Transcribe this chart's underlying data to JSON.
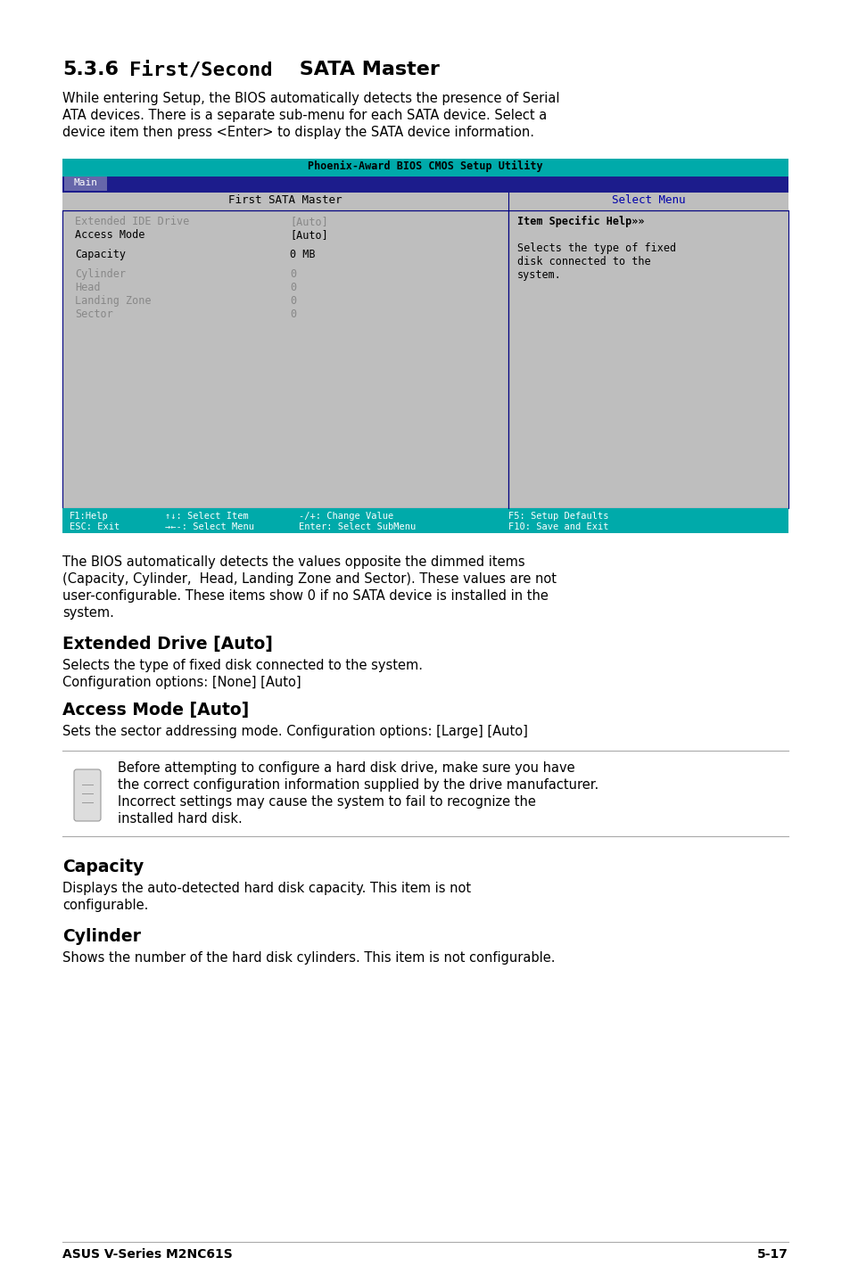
{
  "bios_title": "Phoenix-Award BIOS CMOS Setup Utility",
  "bios_tab": "Main",
  "bios_header_left": "First SATA Master",
  "bios_header_right": "Select Menu",
  "bios_rows": [
    {
      "label": "Extended IDE Drive",
      "value": "[Auto]",
      "dimmed": true
    },
    {
      "label": "Access Mode",
      "value": "[Auto]",
      "dimmed": false
    },
    {
      "label": "",
      "value": "",
      "dimmed": false
    },
    {
      "label": "Capacity",
      "value": "0 MB",
      "dimmed": false
    },
    {
      "label": "",
      "value": "",
      "dimmed": false
    },
    {
      "label": "Cylinder",
      "value": "0",
      "dimmed": true
    },
    {
      "label": "Head",
      "value": "0",
      "dimmed": true
    },
    {
      "label": "Landing Zone",
      "value": "0",
      "dimmed": true
    },
    {
      "label": "Sector",
      "value": "0",
      "dimmed": true
    }
  ],
  "help_lines": [
    "Item Specific Help»»",
    "",
    "Selects the type of fixed",
    "disk connected to the",
    "system."
  ],
  "footer_left1": "F1:Help",
  "footer_left2": "ESC: Exit",
  "footer_mid1": "↑↓: Select Item",
  "footer_mid2": "→←-: Select Menu",
  "footer_val1": "-/+: Change Value",
  "footer_val2": "Enter: Select SubMenu",
  "footer_right1": "F5: Setup Defaults",
  "footer_right2": "F10: Save and Exit",
  "intro_lines": [
    "While entering Setup, the BIOS automatically detects the presence of Serial",
    "ATA devices. There is a separate sub-menu for each SATA device. Select a",
    "device item then press <Enter> to display the SATA device information."
  ],
  "post_lines": [
    "The BIOS automatically detects the values opposite the dimmed items",
    "(Capacity, Cylinder,  Head, Landing Zone and Sector). These values are not",
    "user-configurable. These items show 0 if no SATA device is installed in the",
    "system."
  ],
  "section1_title": "Extended Drive [Auto]",
  "section1_lines": [
    "Selects the type of fixed disk connected to the system.",
    "Configuration options: [None] [Auto]"
  ],
  "section2_title": "Access Mode [Auto]",
  "section2_lines": [
    "Sets the sector addressing mode. Configuration options: [Large] [Auto]"
  ],
  "note_lines": [
    "Before attempting to configure a hard disk drive, make sure you have",
    "the correct configuration information supplied by the drive manufacturer.",
    "Incorrect settings may cause the system to fail to recognize the",
    "installed hard disk."
  ],
  "section3_title": "Capacity",
  "section3_lines": [
    "Displays the auto-detected hard disk capacity. This item is not",
    "configurable."
  ],
  "section4_title": "Cylinder",
  "section4_lines": [
    "Shows the number of the hard disk cylinders. This item is not configurable."
  ],
  "footer_label": "ASUS V-Series M2NC61S",
  "footer_page": "5-17",
  "color_teal": "#00AAAA",
  "color_dark_blue": "#1C1C8C",
  "color_gray_bg": "#BEBEBE",
  "color_dimmed": "#888888",
  "color_blue_text": "#0000AA"
}
